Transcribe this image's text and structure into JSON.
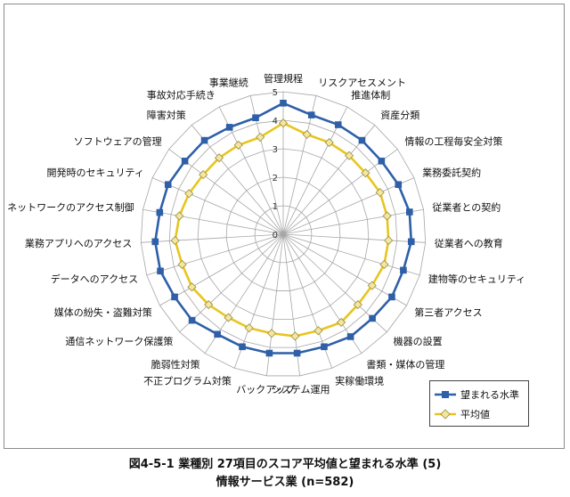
{
  "chart_data": {
    "type": "radar",
    "categories": [
      "管理規程",
      "リスクアセスメント",
      "推進体制",
      "資産分類",
      "情報の工程毎安全対策",
      "業務委託契約",
      "従業者との契約",
      "従業者への教育",
      "建物等のセキュリティ",
      "第三者アクセス",
      "機器の設置",
      "書類・媒体の管理",
      "実稼働環境",
      "システム運用",
      "バックアップ",
      "不正プログラム対策",
      "脆弱性対策",
      "通信ネットワーク保護策",
      "媒体の紛失・盗難対策",
      "データへのアクセス",
      "業務アプリへのアクセス",
      "ネットワークのアクセス制御",
      "開発時のセキュリティ",
      "ソフトウェアの管理",
      "障害対策",
      "事故対応手続き",
      "事業継続"
    ],
    "series": [
      {
        "name": "望まれる水準",
        "color": "#2e5fa8",
        "marker": "square",
        "values": [
          4.6,
          4.3,
          4.3,
          4.3,
          4.3,
          4.4,
          4.5,
          4.5,
          4.4,
          4.4,
          4.3,
          4.3,
          4.2,
          4.2,
          4.2,
          4.2,
          4.2,
          4.4,
          4.4,
          4.5,
          4.5,
          4.4,
          4.4,
          4.3,
          4.3,
          4.2,
          4.2
        ]
      },
      {
        "name": "平均値",
        "color": "#e8c51e",
        "marker": "diamond",
        "values": [
          3.9,
          3.6,
          3.6,
          3.6,
          3.6,
          3.7,
          3.7,
          3.7,
          3.7,
          3.6,
          3.6,
          3.7,
          3.6,
          3.6,
          3.5,
          3.5,
          3.5,
          3.6,
          3.7,
          3.7,
          3.8,
          3.7,
          3.6,
          3.5,
          3.5,
          3.5,
          3.5
        ]
      }
    ],
    "rmin": 0,
    "rmax": 5,
    "ticks": [
      "0",
      "1",
      "2",
      "3",
      "4",
      "5"
    ],
    "legend_position": "bottom-right"
  },
  "caption": {
    "line1": "図4-5-1 業種別 27項目のスコア平均値と望まれる水準 (5)",
    "line2": "情報サービス業 (n=582)"
  }
}
